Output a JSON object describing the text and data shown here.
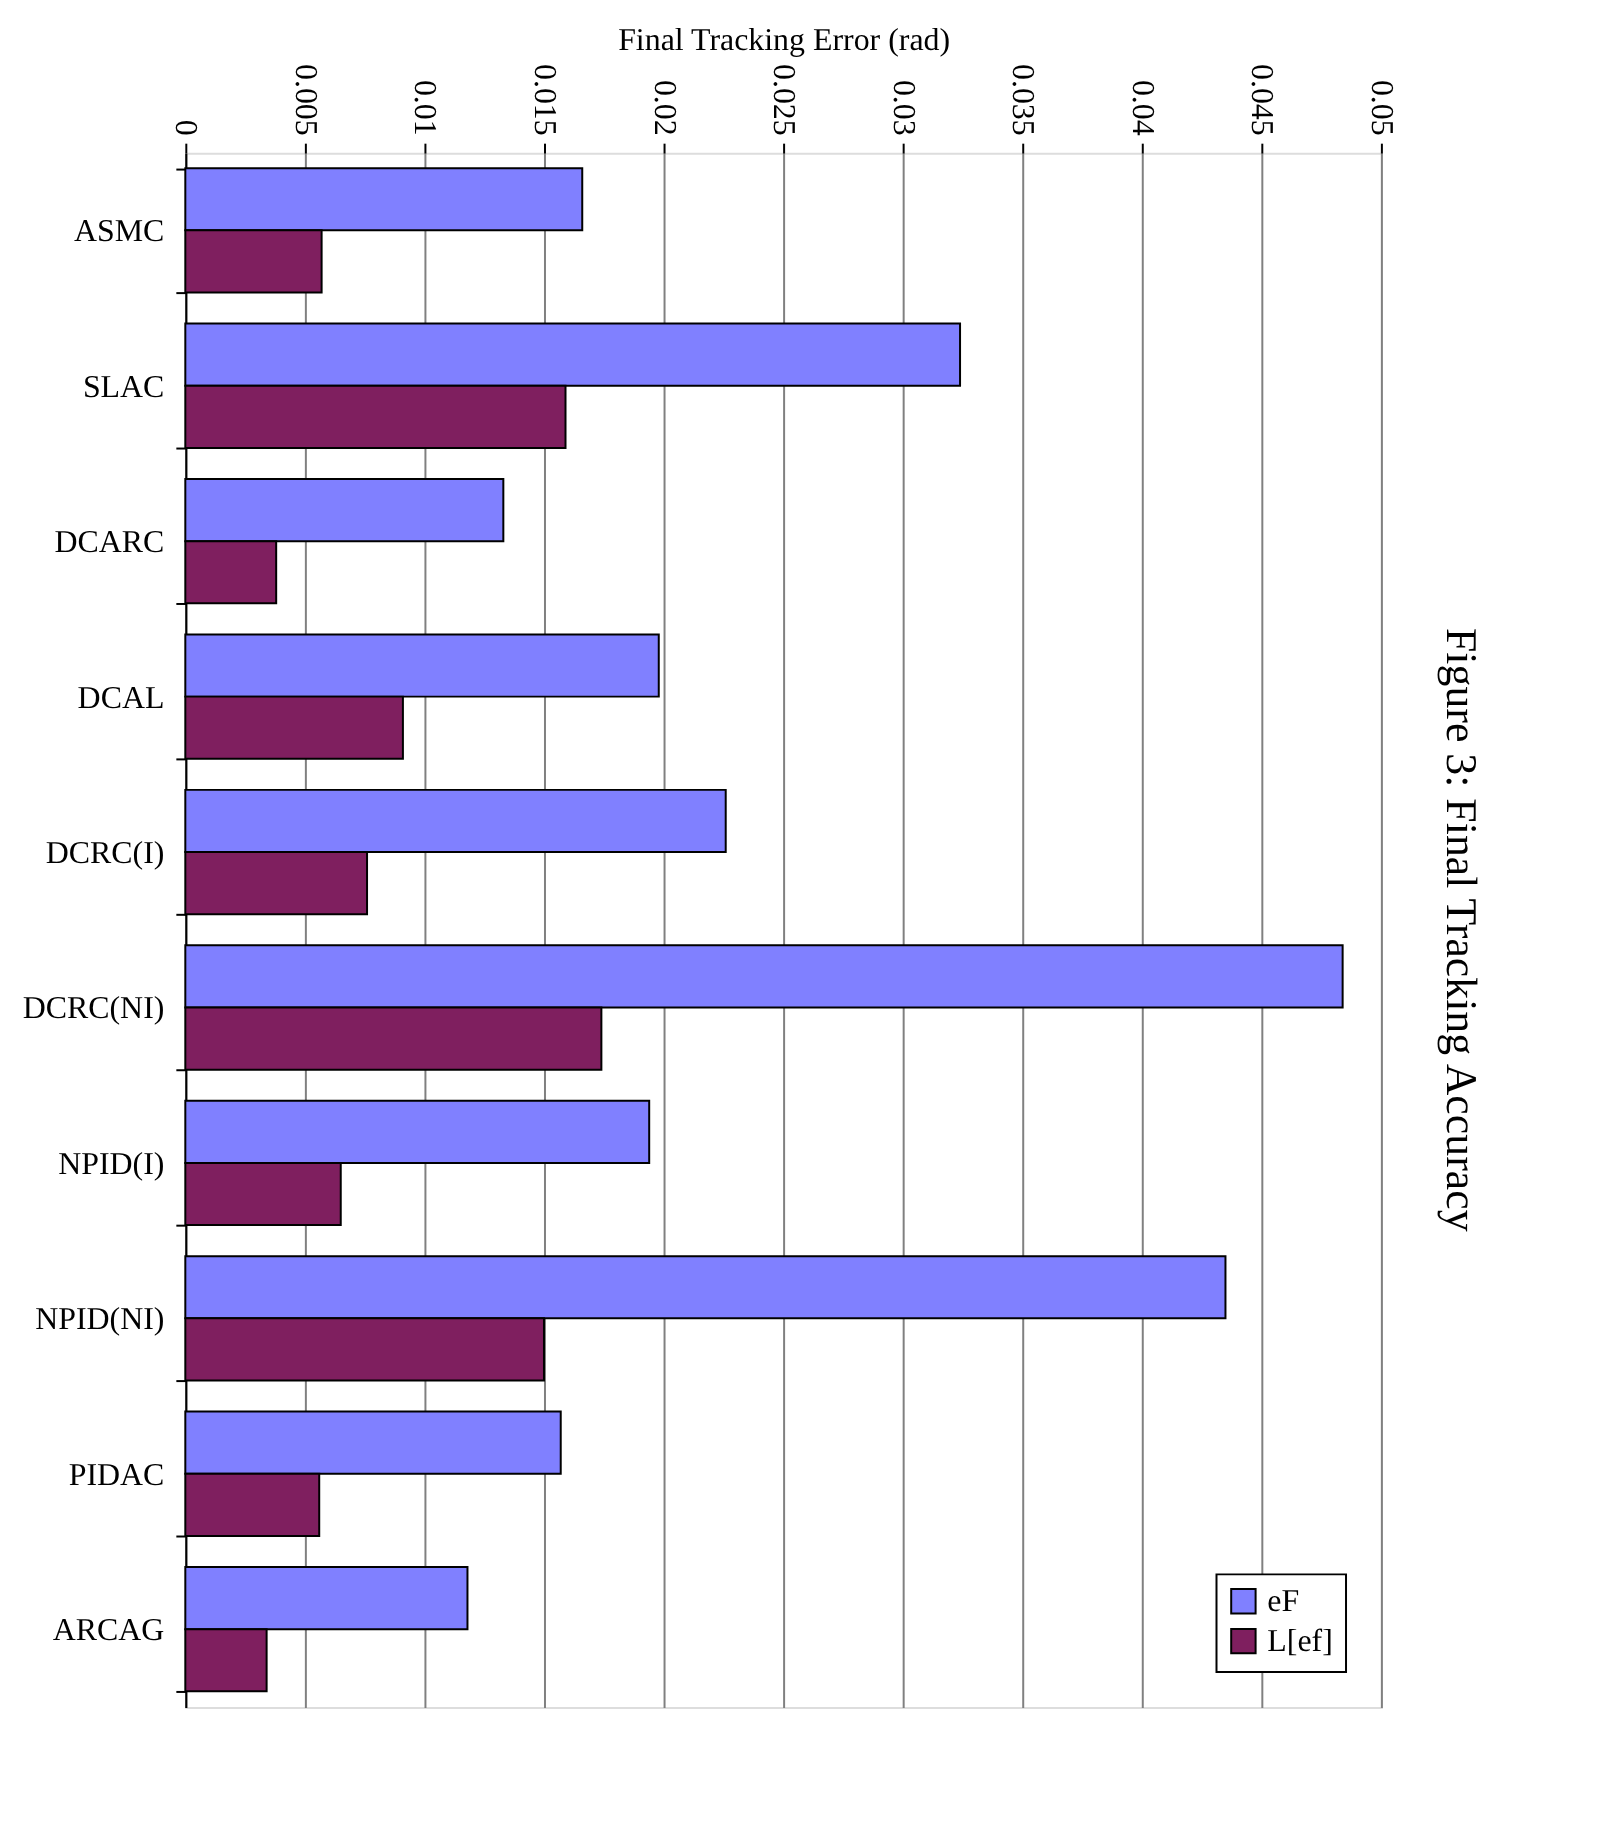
{
  "chart_data": {
    "type": "bar",
    "orientation": "horizontal",
    "xlabel": "Final Tracking Error (rad)",
    "categories": [
      "ASMC",
      "SLAC",
      "DCARC",
      "DCAL",
      "DCRC(I)",
      "DCRC(NI)",
      "NPID(I)",
      "NPID(NI)",
      "PIDAC",
      "ARCAG"
    ],
    "series": [
      {
        "name": "eF",
        "color": "#8080ff",
        "values": [
          0.0166,
          0.0324,
          0.0133,
          0.0198,
          0.0226,
          0.0484,
          0.0194,
          0.0435,
          0.0157,
          0.0118
        ]
      },
      {
        "name": "L[ef]",
        "color": "#7f1f5f",
        "values": [
          0.0057,
          0.0159,
          0.0038,
          0.0091,
          0.0076,
          0.0174,
          0.0065,
          0.015,
          0.0056,
          0.0034
        ]
      }
    ],
    "xlim": [
      0,
      0.05
    ],
    "xticks": [
      0,
      0.005,
      0.01,
      0.015,
      0.02,
      0.025,
      0.03,
      0.035,
      0.04,
      0.045,
      0.05
    ],
    "grid": "x",
    "legend": "bottom right",
    "annotations": [
      "Figure 3: Final Tracking Accuracy"
    ]
  }
}
